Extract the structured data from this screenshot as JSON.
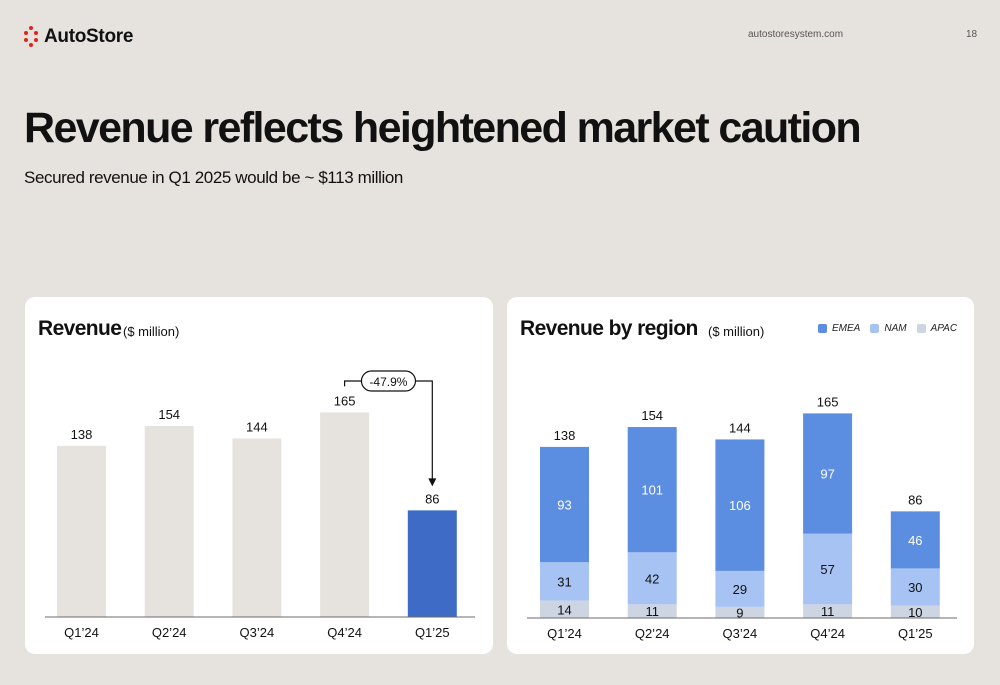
{
  "header": {
    "brand": "AutoStore",
    "site": "autostoresystem.com",
    "page_number": "18"
  },
  "title": "Revenue reflects heightened market caution",
  "subtitle": "Secured revenue in Q1 2025 would be ~ $113 million",
  "colors": {
    "background": "#e6e3df",
    "brand_red": "#e2231a",
    "bar_neutral": "#e6e3df",
    "bar_highlight": "#3d6bc6",
    "emea": "#5b8de0",
    "nam": "#a6c3f3",
    "apac": "#cdd5e3"
  },
  "chart_data": [
    {
      "type": "bar",
      "title": "Revenue",
      "unit": "($ million)",
      "categories": [
        "Q1’24",
        "Q2’24",
        "Q3’24",
        "Q4’24",
        "Q1’25"
      ],
      "values": [
        138,
        154,
        144,
        165,
        86
      ],
      "highlight_index": 4,
      "annotation": {
        "text": "-47.9%",
        "from_index": 3,
        "to_index": 4
      },
      "ylim": [
        0,
        200
      ],
      "grid": false
    },
    {
      "type": "bar",
      "stacked": true,
      "title": "Revenue by region",
      "unit": "($ million)",
      "categories": [
        "Q1’24",
        "Q2’24",
        "Q3’24",
        "Q4’24",
        "Q1’25"
      ],
      "series": [
        {
          "name": "APAC",
          "values": [
            14,
            11,
            9,
            11,
            10
          ]
        },
        {
          "name": "NAM",
          "values": [
            31,
            42,
            29,
            57,
            30
          ]
        },
        {
          "name": "EMEA",
          "values": [
            93,
            101,
            106,
            97,
            46
          ]
        }
      ],
      "totals": [
        138,
        154,
        144,
        165,
        86
      ],
      "legend_order": [
        "EMEA",
        "NAM",
        "APAC"
      ],
      "legend_position": "top-right",
      "ylim": [
        0,
        200
      ],
      "grid": false
    }
  ]
}
